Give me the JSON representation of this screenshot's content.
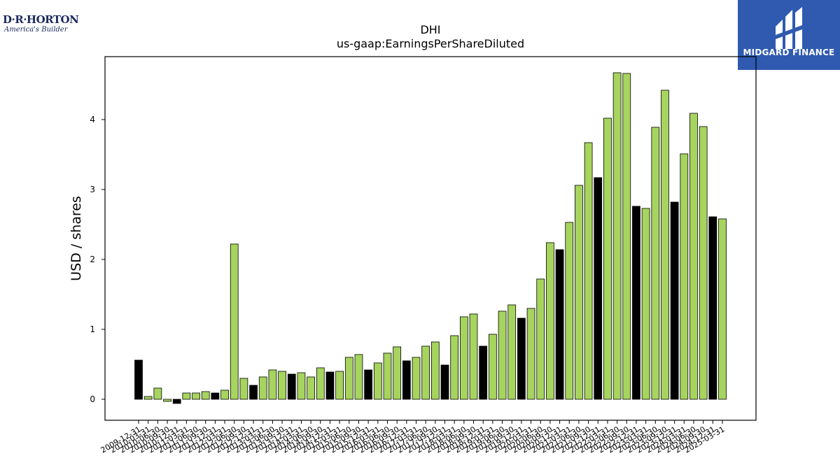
{
  "brand_left": {
    "name": "D·R·HORTON",
    "tagline": "America's Builder"
  },
  "brand_right": {
    "name": "MIDGARD FINANCE"
  },
  "colors": {
    "primary_bar": "#a6d45e",
    "fy_bar": "#000000",
    "brand_blue": "#2f5ab0"
  },
  "chart_data": {
    "type": "bar",
    "title": "DHI",
    "subtitle": "us-gaap:EarningsPerShareDiluted",
    "ylabel": "USD / shares",
    "xlabel": "",
    "ylim": [
      -0.3,
      4.9
    ],
    "yticks": [
      0,
      1,
      2,
      3,
      4
    ],
    "grid": false,
    "categories": [
      "2009-12-31",
      "2010-03-31",
      "2010-06-30",
      "2010-09-30",
      "2010-12-31",
      "2011-03-31",
      "2011-06-30",
      "2011-09-30",
      "2011-12-31",
      "2012-03-31",
      "2012-06-30",
      "2012-09-30",
      "2012-12-31",
      "2013-03-31",
      "2013-06-30",
      "2013-09-30",
      "2013-12-31",
      "2014-03-31",
      "2014-06-30",
      "2014-09-30",
      "2014-12-31",
      "2015-03-31",
      "2015-06-30",
      "2015-09-30",
      "2015-12-31",
      "2016-03-31",
      "2016-06-30",
      "2016-09-30",
      "2016-12-31",
      "2017-03-31",
      "2017-06-30",
      "2017-09-30",
      "2017-12-31",
      "2018-03-31",
      "2018-06-30",
      "2018-09-30",
      "2018-12-31",
      "2019-03-31",
      "2019-06-30",
      "2019-09-30",
      "2019-12-31",
      "2020-03-31",
      "2020-06-30",
      "2020-09-30",
      "2020-12-31",
      "2021-03-31",
      "2021-06-30",
      "2021-09-30",
      "2021-12-31",
      "2022-03-31",
      "2022-06-30",
      "2022-09-30",
      "2022-12-31",
      "2023-03-31",
      "2023-06-30",
      "2023-09-30",
      "2023-12-31",
      "2024-03-31",
      "2024-06-30",
      "2024-09-30",
      "2024-12-31",
      "2025-03-31"
    ],
    "values": [
      0.56,
      0.04,
      0.16,
      -0.03,
      -0.06,
      0.09,
      0.09,
      0.11,
      0.09,
      0.13,
      2.22,
      0.3,
      0.2,
      0.32,
      0.42,
      0.4,
      0.36,
      0.38,
      0.32,
      0.45,
      0.39,
      0.4,
      0.6,
      0.64,
      0.42,
      0.52,
      0.66,
      0.75,
      0.55,
      0.6,
      0.76,
      0.82,
      0.49,
      0.91,
      1.18,
      1.22,
      0.76,
      0.93,
      1.26,
      1.35,
      1.16,
      1.3,
      1.72,
      2.24,
      2.14,
      2.53,
      3.06,
      3.67,
      3.17,
      4.02,
      4.67,
      4.66,
      2.76,
      2.73,
      3.89,
      4.42,
      2.82,
      3.51,
      4.09,
      3.9,
      2.61,
      2.58
    ],
    "fiscal_year_flags": [
      1,
      0,
      0,
      0,
      1,
      0,
      0,
      0,
      1,
      0,
      0,
      0,
      1,
      0,
      0,
      0,
      1,
      0,
      0,
      0,
      1,
      0,
      0,
      0,
      1,
      0,
      0,
      0,
      1,
      0,
      0,
      0,
      1,
      0,
      0,
      0,
      1,
      0,
      0,
      0,
      1,
      0,
      0,
      0,
      1,
      0,
      0,
      0,
      1,
      0,
      0,
      0,
      1,
      0,
      0,
      0,
      1,
      0,
      0,
      0,
      1,
      0
    ]
  }
}
